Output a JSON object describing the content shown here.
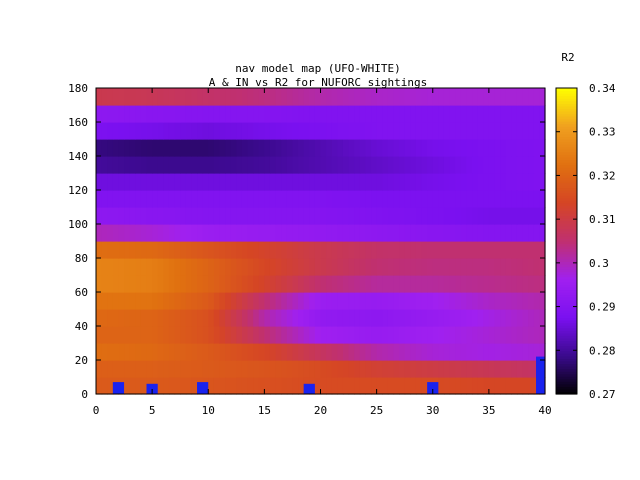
{
  "chart_data": {
    "type": "heatmap",
    "title": "nav model map (UFO-WHITE)",
    "subtitle": "A & IN vs R2 for NUFORC sightings",
    "colorbar_label": "R2",
    "xlabel": "",
    "ylabel": "",
    "xlim": [
      0,
      40
    ],
    "ylim": [
      0,
      180
    ],
    "xticks": [
      "0",
      "5",
      "10",
      "15",
      "20",
      "25",
      "30",
      "35",
      "40"
    ],
    "yticks": [
      "0",
      "20",
      "40",
      "60",
      "80",
      "100",
      "120",
      "140",
      "160",
      "180"
    ],
    "clim": [
      0.27,
      0.34
    ],
    "cticks": [
      "0.27",
      "0.28",
      "0.29",
      "0.3",
      "0.31",
      "0.32",
      "0.33",
      "0.34"
    ],
    "colormap": [
      "#000000",
      "#3a0a8c",
      "#7a10f0",
      "#a020f0",
      "#c03070",
      "#d54525",
      "#e07010",
      "#f0a020",
      "#ffff00"
    ],
    "heat_rows": [
      {
        "y_from": 0,
        "y_to": 10,
        "values_x0_to_x40": [
          0.318,
          0.318,
          0.317,
          0.316,
          0.315,
          0.315,
          0.315,
          0.314,
          0.314
        ]
      },
      {
        "y_from": 10,
        "y_to": 20,
        "values_x0_to_x40": [
          0.319,
          0.319,
          0.318,
          0.317,
          0.315,
          0.312,
          0.31,
          0.308,
          0.306
        ]
      },
      {
        "y_from": 20,
        "y_to": 30,
        "values_x0_to_x40": [
          0.322,
          0.321,
          0.318,
          0.314,
          0.307,
          0.301,
          0.298,
          0.297,
          0.298
        ]
      },
      {
        "y_from": 30,
        "y_to": 40,
        "values_x0_to_x40": [
          0.32,
          0.32,
          0.316,
          0.305,
          0.296,
          0.294,
          0.296,
          0.298,
          0.3
        ]
      },
      {
        "y_from": 40,
        "y_to": 50,
        "values_x0_to_x40": [
          0.321,
          0.32,
          0.316,
          0.301,
          0.293,
          0.292,
          0.294,
          0.297,
          0.3
        ]
      },
      {
        "y_from": 50,
        "y_to": 60,
        "values_x0_to_x40": [
          0.323,
          0.323,
          0.318,
          0.305,
          0.295,
          0.294,
          0.296,
          0.299,
          0.301
        ]
      },
      {
        "y_from": 60,
        "y_to": 70,
        "values_x0_to_x40": [
          0.326,
          0.325,
          0.32,
          0.313,
          0.305,
          0.302,
          0.302,
          0.303,
          0.304
        ]
      },
      {
        "y_from": 70,
        "y_to": 80,
        "values_x0_to_x40": [
          0.326,
          0.325,
          0.32,
          0.314,
          0.309,
          0.305,
          0.304,
          0.304,
          0.305
        ]
      },
      {
        "y_from": 80,
        "y_to": 90,
        "values_x0_to_x40": [
          0.322,
          0.321,
          0.317,
          0.313,
          0.309,
          0.306,
          0.305,
          0.305,
          0.305
        ]
      },
      {
        "y_from": 90,
        "y_to": 100,
        "values_x0_to_x40": [
          0.3,
          0.298,
          0.295,
          0.294,
          0.293,
          0.292,
          0.291,
          0.29,
          0.29
        ]
      },
      {
        "y_from": 100,
        "y_to": 110,
        "values_x0_to_x40": [
          0.292,
          0.291,
          0.29,
          0.29,
          0.29,
          0.289,
          0.288,
          0.287,
          0.287
        ]
      },
      {
        "y_from": 110,
        "y_to": 120,
        "values_x0_to_x40": [
          0.289,
          0.289,
          0.289,
          0.289,
          0.289,
          0.288,
          0.288,
          0.288,
          0.288
        ]
      },
      {
        "y_from": 120,
        "y_to": 130,
        "values_x0_to_x40": [
          0.286,
          0.286,
          0.286,
          0.286,
          0.286,
          0.286,
          0.287,
          0.288,
          0.289
        ]
      },
      {
        "y_from": 130,
        "y_to": 140,
        "values_x0_to_x40": [
          0.28,
          0.279,
          0.279,
          0.28,
          0.282,
          0.284,
          0.286,
          0.288,
          0.289
        ]
      },
      {
        "y_from": 140,
        "y_to": 150,
        "values_x0_to_x40": [
          0.278,
          0.277,
          0.277,
          0.279,
          0.282,
          0.285,
          0.287,
          0.288,
          0.289
        ]
      },
      {
        "y_from": 150,
        "y_to": 160,
        "values_x0_to_x40": [
          0.288,
          0.287,
          0.286,
          0.287,
          0.288,
          0.289,
          0.289,
          0.289,
          0.289
        ]
      },
      {
        "y_from": 160,
        "y_to": 170,
        "values_x0_to_x40": [
          0.292,
          0.291,
          0.29,
          0.29,
          0.289,
          0.289,
          0.289,
          0.289,
          0.289
        ]
      },
      {
        "y_from": 170,
        "y_to": 180,
        "values_x0_to_x40": [
          0.309,
          0.308,
          0.306,
          0.304,
          0.301,
          0.299,
          0.298,
          0.298,
          0.298
        ]
      }
    ],
    "bars": [
      {
        "x": 2,
        "height": 7
      },
      {
        "x": 5,
        "height": 6
      },
      {
        "x": 9.5,
        "height": 7
      },
      {
        "x": 19,
        "height": 6
      },
      {
        "x": 30,
        "height": 7
      },
      {
        "x": 39.7,
        "height": 22
      }
    ],
    "bar_color": "#1a22ee",
    "grid": false
  }
}
